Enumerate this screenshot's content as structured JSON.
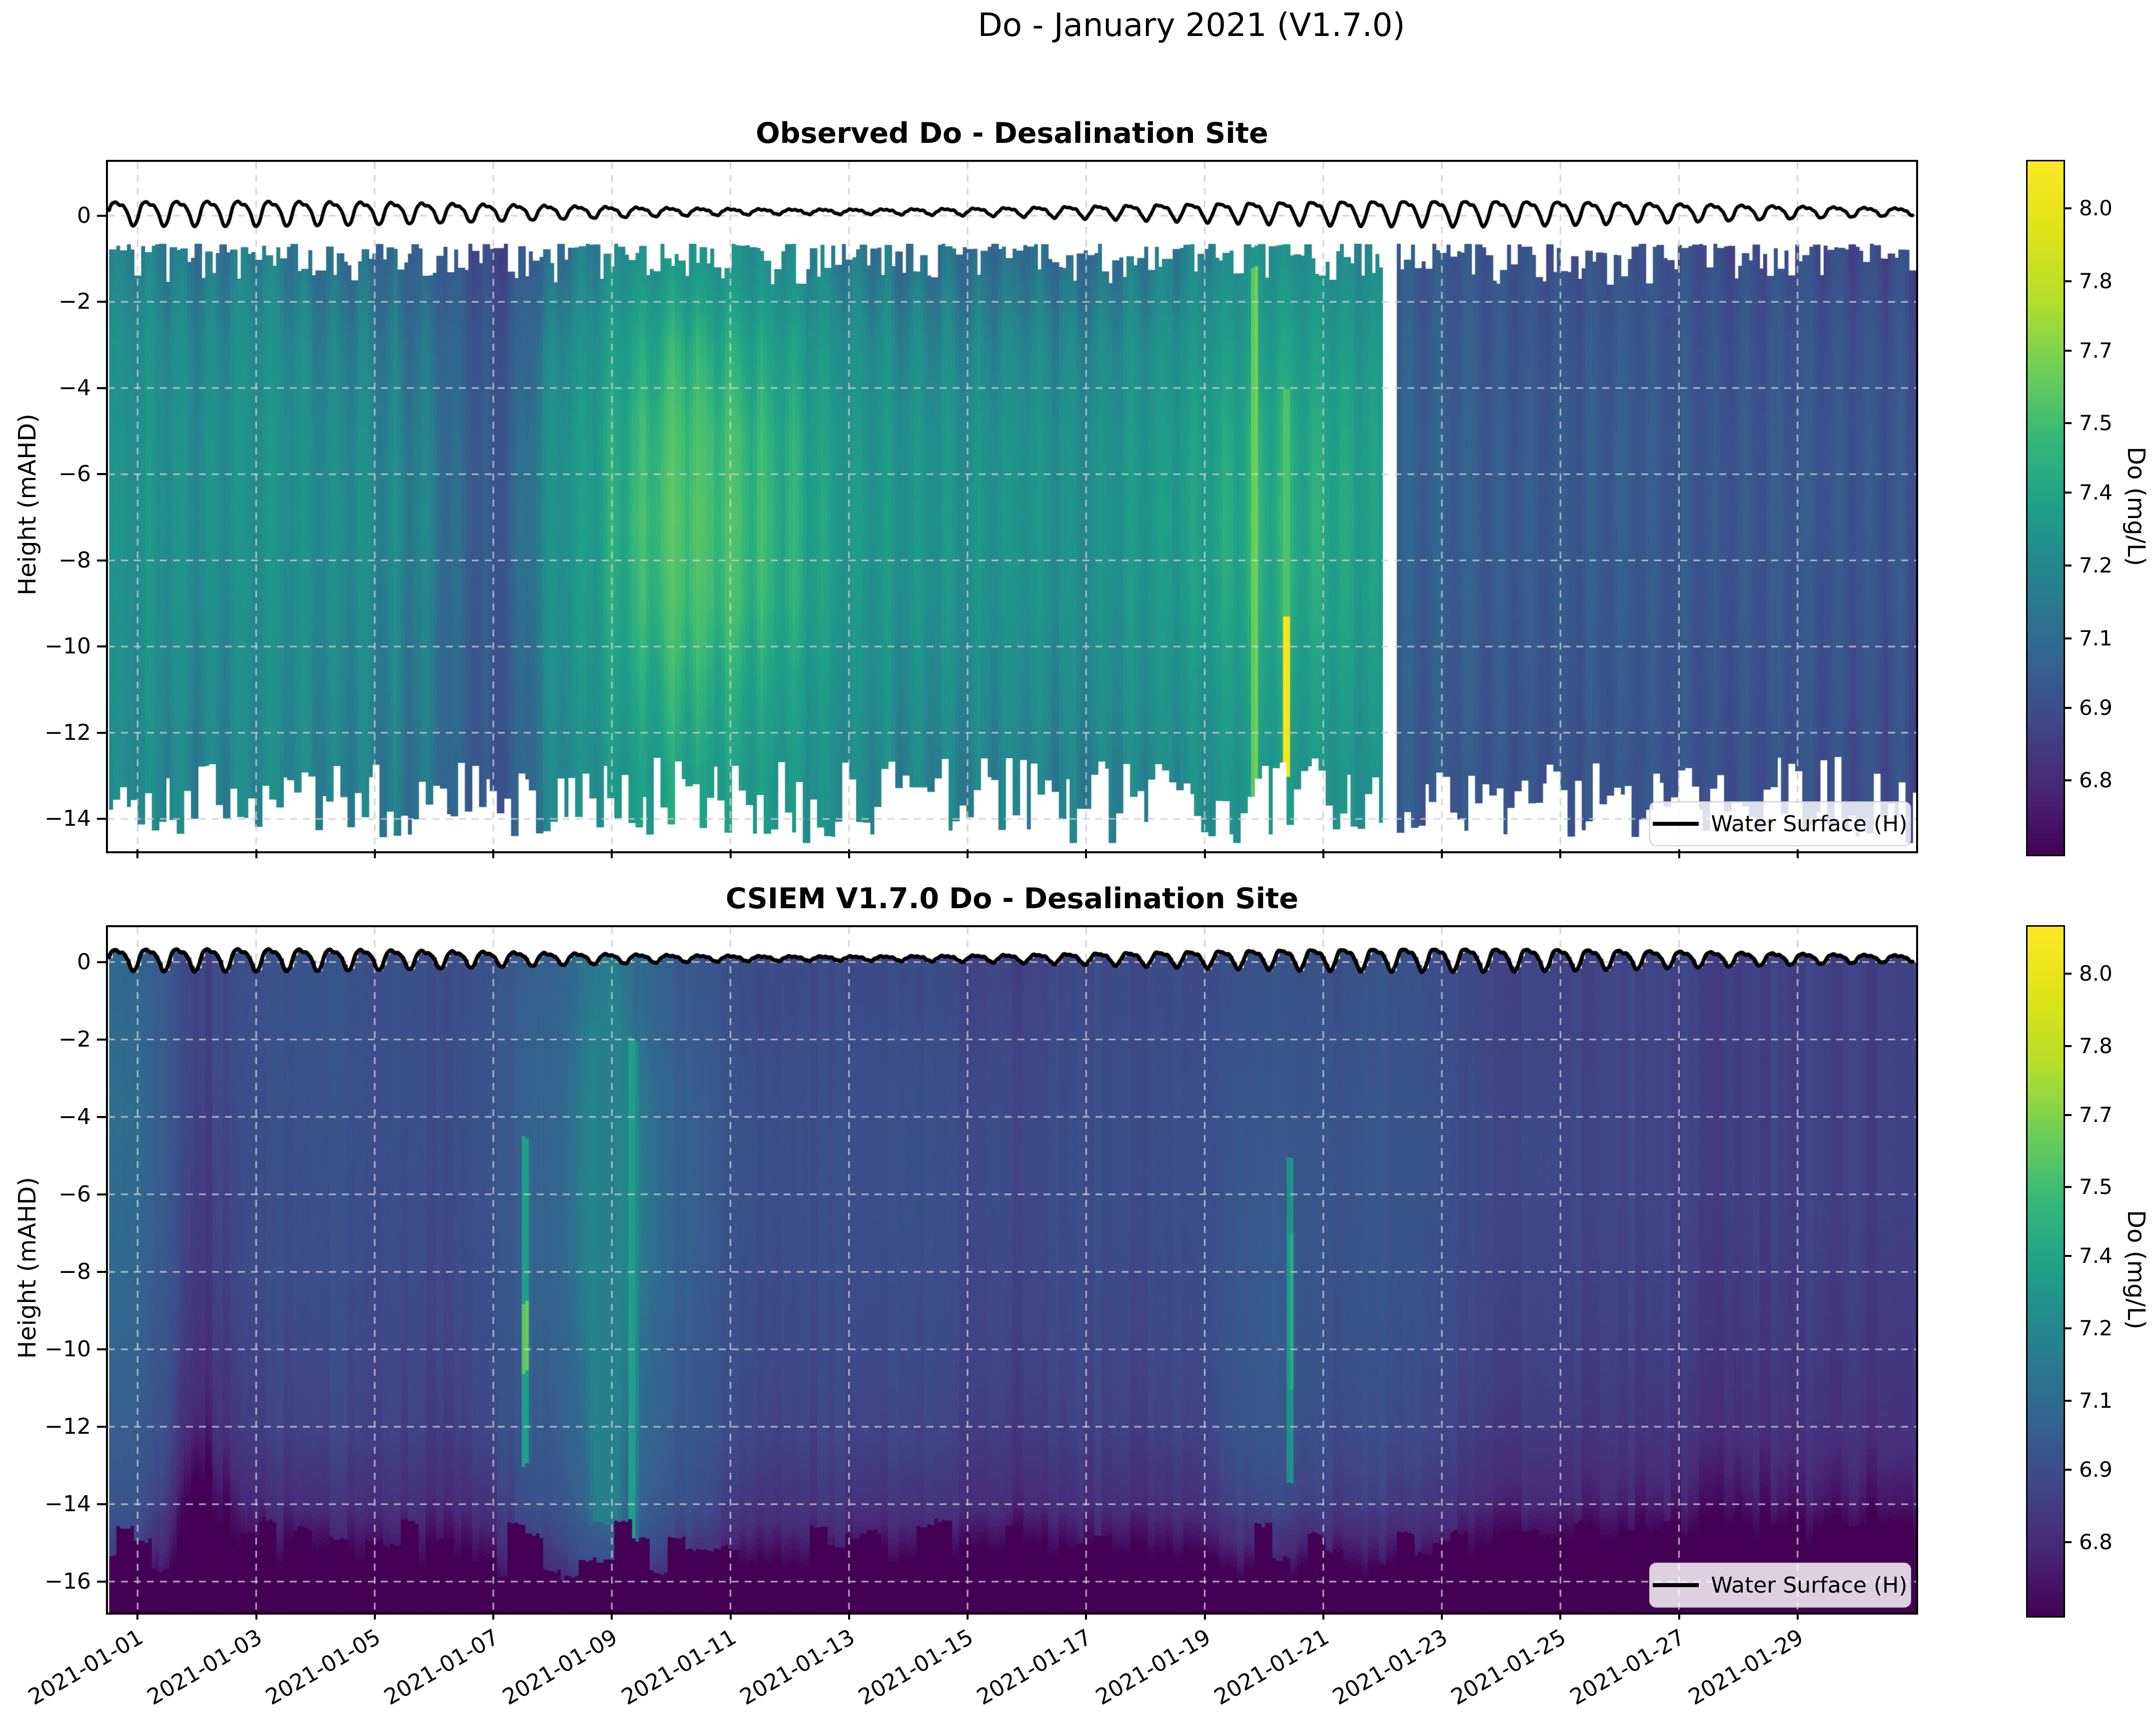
{
  "figure": {
    "suptitle": "Do - January 2021 (V1.7.0)",
    "background_color": "#ffffff"
  },
  "axes_style": {
    "spine_color": "#000000",
    "grid_color": "#cccccc",
    "grid_style": "dashed",
    "text_color": "#000000"
  },
  "xaxis": {
    "range_days": [
      0.5,
      31
    ],
    "tick_days": [
      1,
      3,
      5,
      7,
      9,
      11,
      13,
      15,
      17,
      19,
      21,
      23,
      25,
      27,
      29
    ],
    "tick_labels": [
      "2021-01-01",
      "2021-01-03",
      "2021-01-05",
      "2021-01-07",
      "2021-01-09",
      "2021-01-11",
      "2021-01-13",
      "2021-01-15",
      "2021-01-17",
      "2021-01-19",
      "2021-01-21",
      "2021-01-23",
      "2021-01-25",
      "2021-01-27",
      "2021-01-29"
    ]
  },
  "water_surface": {
    "legend_label": "Water Surface (H)",
    "color": "#000000",
    "mean_m": 0.1,
    "semidiurnal_period_hours": 12.42,
    "amplitude_base_m": 0.16,
    "amplitude_modulation_m": 0.11,
    "modulation_period_days": 20.5,
    "modulation_peak_day": 2.5
  },
  "colorbar": {
    "label": "Do (mg/L)",
    "tick_labels": [
      "8.0",
      "7.8",
      "7.7",
      "7.5",
      "7.4",
      "7.2",
      "7.1",
      "6.9",
      "6.8"
    ],
    "tick_values": [
      8.0,
      7.8,
      7.7,
      7.5,
      7.4,
      7.2,
      7.1,
      6.9,
      6.8
    ],
    "value_scale_anchors": [
      [
        6.75,
        0
      ],
      [
        6.8,
        0.105
      ],
      [
        6.9,
        0.21
      ],
      [
        7.1,
        0.31
      ],
      [
        7.2,
        0.415
      ],
      [
        7.4,
        0.52
      ],
      [
        7.5,
        0.62
      ],
      [
        7.7,
        0.725
      ],
      [
        7.8,
        0.825
      ],
      [
        8.0,
        0.93
      ],
      [
        8.1,
        1
      ]
    ],
    "viridis_stops": [
      [
        0,
        "#440154"
      ],
      [
        0.1,
        "#482878"
      ],
      [
        0.2,
        "#3e4a89"
      ],
      [
        0.3,
        "#31688e"
      ],
      [
        0.4,
        "#26828e"
      ],
      [
        0.5,
        "#1f9e89"
      ],
      [
        0.6,
        "#35b779"
      ],
      [
        0.7,
        "#6ece58"
      ],
      [
        0.8,
        "#b5de2b"
      ],
      [
        0.9,
        "#dfe318"
      ],
      [
        1,
        "#fde725"
      ]
    ]
  },
  "chart_data": [
    {
      "type": "heatmap",
      "title": "Observed Do - Desalination Site",
      "ylabel": "Height (mAHD)",
      "yticks": [
        0,
        -2,
        -4,
        -6,
        -8,
        -10,
        -12,
        -14
      ],
      "ylim": [
        -14.75,
        1.25
      ],
      "legend_label": "Water Surface (H)",
      "x_days": [
        1,
        2,
        3,
        4,
        5,
        6,
        7,
        8,
        9,
        10,
        11,
        12,
        13,
        14,
        15,
        16,
        17,
        18,
        19,
        20,
        21,
        22,
        23,
        24,
        25,
        26,
        27,
        28,
        29,
        30
      ],
      "depth_anchors_m": [
        -1,
        -3,
        -5,
        -7,
        -9,
        -11,
        -13
      ],
      "values_mg_per_L": [
        [
          7.18,
          7.25,
          7.27,
          7.28,
          7.26,
          7.24,
          7.22
        ],
        [
          7.14,
          7.21,
          7.24,
          7.25,
          7.24,
          7.21,
          7.19
        ],
        [
          7.18,
          7.26,
          7.28,
          7.28,
          7.26,
          7.24,
          7.22
        ],
        [
          7.12,
          7.2,
          7.24,
          7.25,
          7.24,
          7.22,
          7.2
        ],
        [
          7.1,
          7.18,
          7.22,
          7.24,
          7.22,
          7.2,
          7.18
        ],
        [
          7.04,
          7.12,
          7.16,
          7.18,
          7.16,
          7.15,
          7.13
        ],
        [
          6.87,
          6.92,
          6.95,
          6.96,
          6.95,
          6.94,
          6.93
        ],
        [
          7.1,
          7.2,
          7.25,
          7.26,
          7.25,
          7.22,
          7.2
        ],
        [
          7.24,
          7.34,
          7.4,
          7.42,
          7.4,
          7.35,
          7.3
        ],
        [
          7.3,
          7.45,
          7.52,
          7.55,
          7.52,
          7.45,
          7.38
        ],
        [
          7.28,
          7.42,
          7.5,
          7.52,
          7.5,
          7.42,
          7.36
        ],
        [
          7.22,
          7.35,
          7.42,
          7.44,
          7.42,
          7.36,
          7.3
        ],
        [
          7.15,
          7.25,
          7.3,
          7.32,
          7.3,
          7.26,
          7.22
        ],
        [
          7.12,
          7.22,
          7.28,
          7.3,
          7.28,
          7.24,
          7.2
        ],
        [
          7.1,
          7.2,
          7.26,
          7.28,
          7.26,
          7.22,
          7.18
        ],
        [
          7.12,
          7.22,
          7.28,
          7.3,
          7.28,
          7.24,
          7.2
        ],
        [
          7.1,
          7.2,
          7.25,
          7.26,
          7.25,
          7.22,
          7.18
        ],
        [
          7.15,
          7.25,
          7.3,
          7.32,
          7.3,
          7.26,
          7.22
        ],
        [
          7.2,
          7.3,
          7.36,
          7.38,
          7.36,
          7.3,
          7.26
        ],
        [
          7.28,
          7.38,
          7.44,
          7.46,
          7.44,
          7.4,
          7.34
        ],
        [
          7.24,
          7.34,
          7.4,
          7.42,
          7.4,
          7.35,
          7.3
        ],
        [
          7.2,
          7.3,
          7.35,
          7.36,
          7.34,
          7.3,
          7.26
        ],
        [
          6.98,
          7.01,
          7.03,
          7.03,
          7.02,
          7.0,
          6.99
        ],
        [
          6.95,
          6.97,
          6.99,
          7.0,
          6.99,
          6.97,
          6.96
        ],
        [
          6.92,
          6.95,
          6.97,
          6.98,
          6.97,
          6.95,
          6.94
        ],
        [
          6.95,
          6.98,
          7.0,
          7.0,
          6.99,
          6.97,
          6.96
        ],
        [
          6.92,
          6.95,
          6.97,
          6.97,
          6.96,
          6.95,
          6.94
        ],
        [
          6.9,
          6.93,
          6.95,
          6.96,
          6.95,
          6.93,
          6.92
        ],
        [
          6.92,
          6.95,
          6.97,
          6.98,
          6.96,
          6.95,
          6.93
        ],
        [
          6.9,
          6.94,
          6.96,
          6.96,
          6.95,
          6.93,
          6.92
        ]
      ],
      "data_gap_days": [
        21.98,
        22.22
      ],
      "top_edge_m_range": [
        -0.65,
        -1.6
      ],
      "bottom_edge_m_range": [
        -12.6,
        -14.5
      ],
      "highlights": [
        {
          "day": 19.85,
          "half_width_days": 0.07,
          "z_top": -1.2,
          "z_bot": -13.6,
          "value": 7.62
        },
        {
          "day": 20.38,
          "half_width_days": 0.06,
          "z_top": -4.0,
          "z_bot": -9.3,
          "value": 7.52
        },
        {
          "day": 20.38,
          "half_width_days": 0.08,
          "z_top": -9.3,
          "z_bot": -13.0,
          "value": 8.02
        }
      ]
    },
    {
      "type": "heatmap",
      "title": "CSIEM V1.7.0 Do - Desalination Site",
      "ylabel": "Height (mAHD)",
      "yticks": [
        0,
        -2,
        -4,
        -6,
        -8,
        -10,
        -12,
        -14,
        -16
      ],
      "ylim": [
        -16.8,
        0.9
      ],
      "legend_label": "Water Surface (H)",
      "x_days": [
        1,
        2,
        3,
        4,
        5,
        6,
        7,
        8,
        9,
        10,
        11,
        12,
        13,
        14,
        15,
        16,
        17,
        18,
        19,
        20,
        21,
        22,
        23,
        24,
        25,
        26,
        27,
        28,
        29,
        30
      ],
      "depth_anchors_m": [
        -0.5,
        -2,
        -4,
        -6,
        -8,
        -10,
        -12,
        -14,
        -16
      ],
      "values_mg_per_L": [
        [
          7.08,
          7.1,
          7.11,
          7.1,
          7.08,
          7.05,
          7.02,
          6.95,
          6.8
        ],
        [
          6.86,
          6.86,
          6.85,
          6.84,
          6.83,
          6.81,
          6.78,
          6.72,
          6.7
        ],
        [
          6.92,
          6.92,
          6.91,
          6.9,
          6.9,
          6.88,
          6.86,
          6.8,
          6.72
        ],
        [
          6.95,
          6.95,
          6.94,
          6.93,
          6.92,
          6.9,
          6.88,
          6.82,
          6.72
        ],
        [
          6.92,
          6.92,
          6.92,
          6.91,
          6.9,
          6.89,
          6.87,
          6.82,
          6.73
        ],
        [
          6.9,
          6.9,
          6.9,
          6.89,
          6.88,
          6.87,
          6.85,
          6.8,
          6.72
        ],
        [
          6.95,
          6.96,
          6.96,
          6.95,
          6.94,
          6.92,
          6.9,
          6.84,
          6.74
        ],
        [
          7.04,
          7.06,
          7.07,
          7.07,
          7.06,
          7.03,
          7.0,
          6.94,
          6.8
        ],
        [
          7.18,
          7.21,
          7.24,
          7.25,
          7.24,
          7.21,
          7.18,
          7.12,
          6.88
        ],
        [
          7.0,
          7.02,
          7.05,
          7.06,
          7.05,
          7.02,
          7.0,
          6.94,
          6.78
        ],
        [
          6.92,
          6.93,
          6.94,
          6.94,
          6.93,
          6.92,
          6.9,
          6.85,
          6.74
        ],
        [
          6.88,
          6.89,
          6.9,
          6.9,
          6.89,
          6.88,
          6.86,
          6.82,
          6.72
        ],
        [
          6.9,
          6.91,
          6.92,
          6.92,
          6.91,
          6.9,
          6.88,
          6.83,
          6.73
        ],
        [
          6.9,
          6.91,
          6.92,
          6.92,
          6.91,
          6.9,
          6.88,
          6.83,
          6.72
        ],
        [
          6.88,
          6.89,
          6.9,
          6.9,
          6.89,
          6.88,
          6.86,
          6.82,
          6.71
        ],
        [
          6.87,
          6.88,
          6.89,
          6.89,
          6.88,
          6.87,
          6.85,
          6.8,
          6.7
        ],
        [
          6.9,
          6.9,
          6.91,
          6.91,
          6.9,
          6.89,
          6.87,
          6.82,
          6.72
        ],
        [
          6.89,
          6.9,
          6.9,
          6.9,
          6.89,
          6.88,
          6.86,
          6.81,
          6.71
        ],
        [
          6.9,
          6.91,
          6.92,
          6.92,
          6.91,
          6.9,
          6.88,
          6.83,
          6.72
        ],
        [
          6.95,
          6.96,
          6.98,
          7.0,
          7.01,
          7.01,
          6.99,
          6.9,
          6.75
        ],
        [
          6.92,
          6.93,
          6.94,
          6.94,
          6.93,
          6.92,
          6.9,
          6.85,
          6.73
        ],
        [
          6.95,
          6.96,
          6.97,
          6.97,
          6.96,
          6.94,
          6.92,
          6.86,
          6.74
        ],
        [
          6.9,
          6.9,
          6.91,
          6.91,
          6.9,
          6.89,
          6.87,
          6.82,
          6.72
        ],
        [
          6.88,
          6.88,
          6.89,
          6.89,
          6.88,
          6.87,
          6.85,
          6.8,
          6.71
        ],
        [
          6.87,
          6.87,
          6.88,
          6.88,
          6.87,
          6.86,
          6.84,
          6.79,
          6.7
        ],
        [
          6.88,
          6.88,
          6.88,
          6.88,
          6.87,
          6.86,
          6.84,
          6.79,
          6.7
        ],
        [
          6.87,
          6.87,
          6.87,
          6.87,
          6.86,
          6.85,
          6.83,
          6.78,
          6.7
        ],
        [
          6.86,
          6.86,
          6.86,
          6.86,
          6.85,
          6.84,
          6.82,
          6.77,
          6.69
        ],
        [
          6.87,
          6.87,
          6.87,
          6.87,
          6.86,
          6.85,
          6.83,
          6.78,
          6.7
        ],
        [
          6.86,
          6.86,
          6.86,
          6.86,
          6.85,
          6.84,
          6.82,
          6.77,
          6.69
        ]
      ],
      "highlights": [
        {
          "day": 7.55,
          "half_width_days": 0.09,
          "z_top": -4.5,
          "z_bot": -13.0,
          "value": 7.35
        },
        {
          "day": 7.55,
          "half_width_days": 0.07,
          "z_top": -8.8,
          "z_bot": -10.6,
          "value": 7.62
        },
        {
          "day": 8.9,
          "half_width_days": 0.35,
          "z_top": -1.5,
          "z_bot": -14.5,
          "value": 7.18
        },
        {
          "day": 9.35,
          "half_width_days": 0.1,
          "z_top": -2.0,
          "z_bot": -15.5,
          "value": 7.38
        },
        {
          "day": 20.45,
          "half_width_days": 0.08,
          "z_top": -5.0,
          "z_bot": -13.5,
          "value": 7.28
        },
        {
          "day": 20.45,
          "half_width_days": 0.05,
          "z_top": -7.0,
          "z_bot": -11.0,
          "value": 7.42
        }
      ]
    }
  ]
}
